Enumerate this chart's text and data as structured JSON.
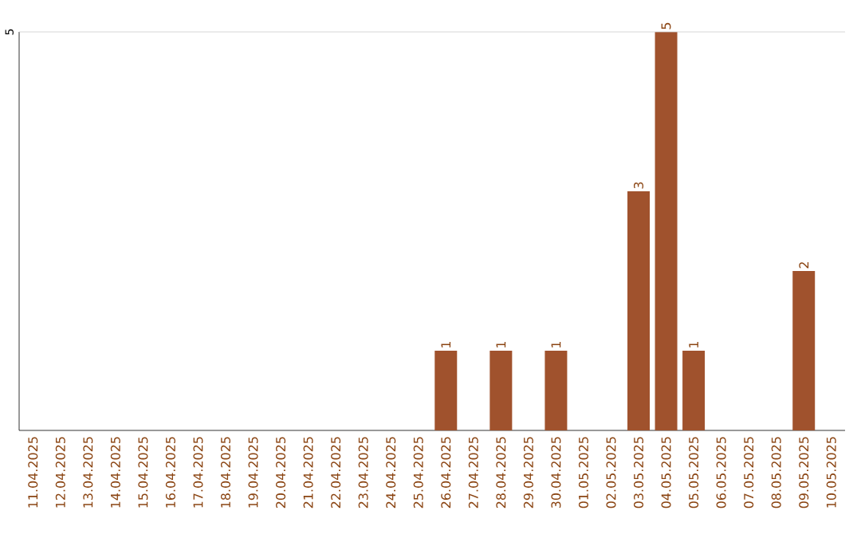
{
  "chart_data": {
    "type": "bar",
    "categories": [
      "11.04.2025",
      "12.04.2025",
      "13.04.2025",
      "14.04.2025",
      "15.04.2025",
      "16.04.2025",
      "17.04.2025",
      "18.04.2025",
      "19.04.2025",
      "20.04.2025",
      "21.04.2025",
      "22.04.2025",
      "23.04.2025",
      "24.04.2025",
      "25.04.2025",
      "26.04.2025",
      "27.04.2025",
      "28.04.2025",
      "29.04.2025",
      "30.04.2025",
      "01.05.2025",
      "02.05.2025",
      "03.05.2025",
      "04.05.2025",
      "05.05.2025",
      "06.05.2025",
      "07.05.2025",
      "08.05.2025",
      "09.05.2025",
      "10.05.2025"
    ],
    "values": [
      null,
      null,
      null,
      null,
      null,
      null,
      null,
      null,
      null,
      null,
      null,
      null,
      null,
      null,
      null,
      1,
      null,
      1,
      null,
      1,
      null,
      null,
      3,
      5,
      1,
      null,
      null,
      null,
      2,
      null
    ],
    "data_labels": true,
    "color": "#a0522d",
    "ylim": [
      0,
      5
    ],
    "yticks": [
      5
    ],
    "ref_lines": [
      {
        "axis": "y",
        "value": 5,
        "color": "#cccccc"
      }
    ]
  }
}
